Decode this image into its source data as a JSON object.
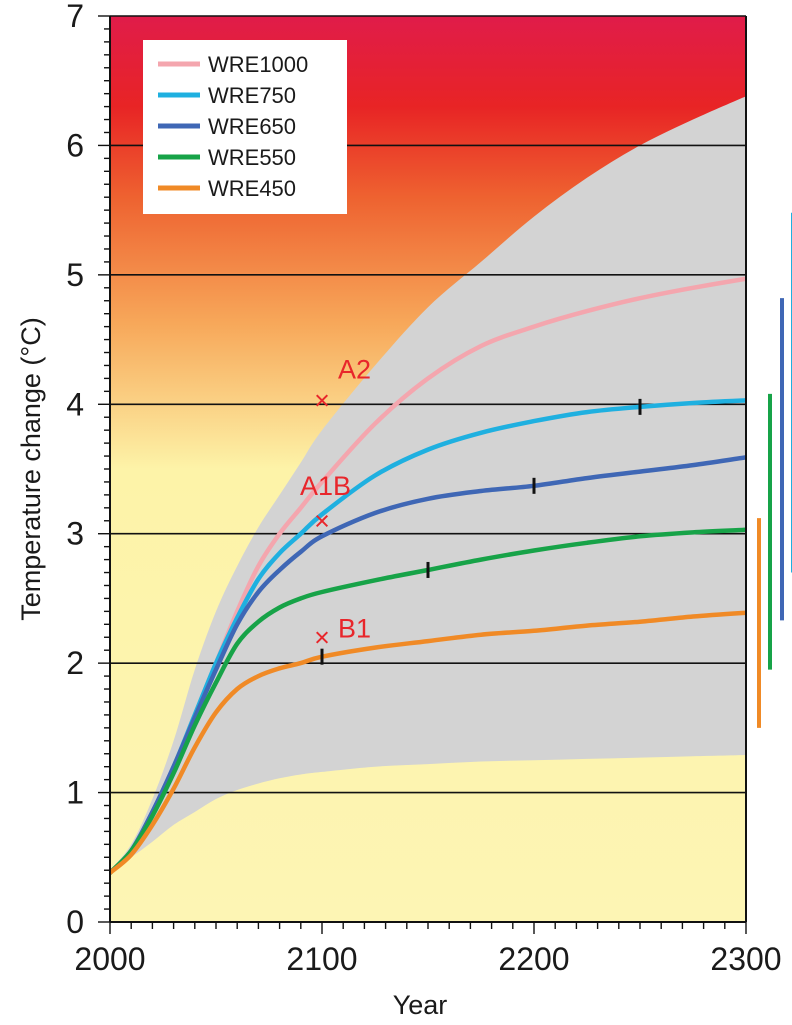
{
  "chart_data": {
    "type": "line",
    "xlabel": "Year",
    "ylabel": "Temperature change (°C)",
    "xlim": [
      2000,
      2300
    ],
    "ylim": [
      0,
      7
    ],
    "x_ticks": [
      "2000",
      "2100",
      "2200",
      "2300"
    ],
    "y_ticks": [
      "0",
      "1",
      "2",
      "3",
      "4",
      "5",
      "6",
      "7"
    ],
    "gridlines_y": [
      1,
      2,
      3,
      4,
      5,
      6
    ],
    "legend_position": "top-left",
    "background_gradient": [
      "#fdf5b4",
      "#fdf3a8",
      "#f7a85a",
      "#ee6230",
      "#e82425",
      "#e01c4a"
    ],
    "uncertainty_band": {
      "color": "#d3d3d3",
      "x": [
        2000,
        2010,
        2020,
        2030,
        2040,
        2050,
        2060,
        2070,
        2080,
        2090,
        2100,
        2125,
        2150,
        2175,
        2200,
        2225,
        2250,
        2275,
        2300
      ],
      "upper": [
        0.4,
        0.6,
        0.95,
        1.4,
        1.95,
        2.4,
        2.75,
        3.05,
        3.3,
        3.55,
        3.8,
        4.3,
        4.75,
        5.1,
        5.45,
        5.75,
        6.0,
        6.2,
        6.38
      ],
      "lower": [
        0.4,
        0.5,
        0.62,
        0.75,
        0.85,
        0.95,
        1.02,
        1.07,
        1.11,
        1.14,
        1.16,
        1.2,
        1.22,
        1.24,
        1.25,
        1.26,
        1.27,
        1.28,
        1.29
      ]
    },
    "x": [
      2000,
      2010,
      2020,
      2030,
      2040,
      2050,
      2060,
      2070,
      2080,
      2090,
      2100,
      2125,
      2150,
      2175,
      2200,
      2225,
      2250,
      2275,
      2300
    ],
    "series": [
      {
        "name": "WRE1000",
        "color": "#f4a6ae",
        "values": [
          0.38,
          0.55,
          0.85,
          1.2,
          1.6,
          2.0,
          2.4,
          2.75,
          3.0,
          3.2,
          3.4,
          3.85,
          4.2,
          4.45,
          4.6,
          4.72,
          4.82,
          4.9,
          4.97
        ]
      },
      {
        "name": "WRE750",
        "color": "#1fb0e0",
        "values": [
          0.38,
          0.55,
          0.85,
          1.2,
          1.6,
          2.0,
          2.35,
          2.65,
          2.85,
          3.0,
          3.15,
          3.45,
          3.65,
          3.78,
          3.87,
          3.94,
          3.98,
          4.01,
          4.03
        ],
        "stabilization_mark": 2250
      },
      {
        "name": "WRE650",
        "color": "#3f67b5",
        "values": [
          0.38,
          0.55,
          0.85,
          1.2,
          1.58,
          1.95,
          2.3,
          2.55,
          2.72,
          2.86,
          2.98,
          3.16,
          3.27,
          3.33,
          3.37,
          3.43,
          3.48,
          3.53,
          3.59
        ],
        "stabilization_mark": 2200
      },
      {
        "name": "WRE550",
        "color": "#17a348",
        "values": [
          0.38,
          0.55,
          0.82,
          1.15,
          1.52,
          1.85,
          2.15,
          2.32,
          2.43,
          2.5,
          2.55,
          2.64,
          2.72,
          2.8,
          2.87,
          2.93,
          2.98,
          3.01,
          3.03
        ],
        "stabilization_mark": 2150
      },
      {
        "name": "WRE450",
        "color": "#f08a26",
        "values": [
          0.38,
          0.52,
          0.75,
          1.03,
          1.35,
          1.62,
          1.8,
          1.9,
          1.96,
          2.0,
          2.05,
          2.12,
          2.17,
          2.22,
          2.25,
          2.29,
          2.32,
          2.36,
          2.39
        ],
        "stabilization_mark": 2100
      }
    ],
    "scenario_markers": [
      {
        "label": "A2",
        "x": 2100,
        "y": 4.03
      },
      {
        "label": "A1B",
        "x": 2100,
        "y": 3.1
      },
      {
        "label": "B1",
        "x": 2100,
        "y": 2.2
      }
    ],
    "equilibrium_ranges": [
      {
        "color": "#f08a26",
        "low": 1.5,
        "high": 3.12
      },
      {
        "color": "#17a348",
        "low": 1.95,
        "high": 4.08
      },
      {
        "color": "#3f67b5",
        "low": 2.33,
        "high": 4.82
      },
      {
        "color": "#1fb0e0",
        "low": 2.7,
        "high": 5.48
      }
    ]
  }
}
